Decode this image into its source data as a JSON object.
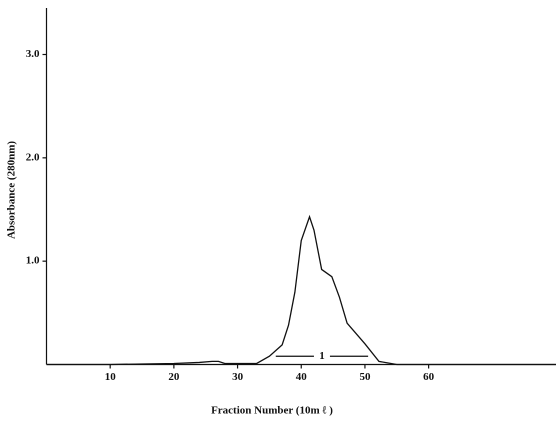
{
  "chart_data": {
    "type": "line",
    "xlabel": "Fraction Number (10m ℓ )",
    "ylabel": "Absorbance (280nm)",
    "x": [
      0,
      5,
      10,
      15,
      20,
      24,
      26,
      27,
      28,
      30,
      33,
      35,
      37,
      38,
      39,
      40,
      41.3,
      42,
      43.2,
      44.8,
      46,
      47.2,
      50,
      52.2,
      55,
      60,
      70,
      80
    ],
    "series": [
      {
        "color": "#111111",
        "values": [
          0,
          0,
          0,
          0.005,
          0.01,
          0.02,
          0.03,
          0.03,
          0.01,
          0.01,
          0.01,
          0.08,
          0.19,
          0.38,
          0.7,
          1.2,
          1.43,
          1.3,
          0.92,
          0.85,
          0.65,
          0.4,
          0.2,
          0.03,
          0,
          0,
          0,
          0
        ]
      }
    ],
    "xlim": [
      0,
      80
    ],
    "xticks": [
      10,
      20,
      30,
      40,
      50,
      60
    ],
    "ylim": [
      0,
      3.45
    ],
    "yticks": [
      {
        "value": 1,
        "label": "1.0"
      },
      {
        "value": 2,
        "label": "2.0"
      },
      {
        "value": 3,
        "label": "3.0"
      }
    ],
    "grid": false,
    "annotations": [
      {
        "text": "1",
        "x": [
          36,
          50.5
        ],
        "y": 0.08
      }
    ]
  }
}
